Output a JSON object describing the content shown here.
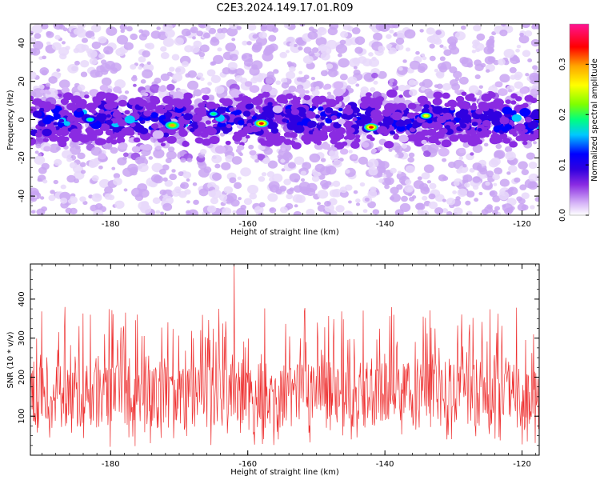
{
  "figure_title": "C2E3.2024.149.17.01.R09",
  "chart_data": [
    {
      "type": "heatmap",
      "xlabel": "Height of straight line (km)",
      "ylabel": "Frequency (Hz)",
      "xlim": [
        -191.7,
        -117.5
      ],
      "ylim": [
        -50,
        50
      ],
      "x_ticks": [
        -180,
        -160,
        -140,
        -120
      ],
      "y_ticks": [
        -40,
        -20,
        0,
        20,
        40
      ],
      "colorbar": {
        "label": "Normalized spectral amplitude",
        "range": [
          0,
          0.38
        ],
        "ticks": [
          0.0,
          0.1,
          0.2,
          0.3
        ],
        "colormap": [
          "#ffffff",
          "#d8b8f8",
          "#8a2be2",
          "#5a00d8",
          "#0000ff",
          "#00c8ff",
          "#00ff7f",
          "#7fff00",
          "#ffff00",
          "#ffa500",
          "#ff0000",
          "#ff1493"
        ]
      },
      "description_free_band_center_hz": 0,
      "band_halfwidth_hz": 10,
      "hotspots": [
        {
          "x": -171,
          "y": -3,
          "value": 0.32
        },
        {
          "x": -158,
          "y": -2,
          "value": 0.34
        },
        {
          "x": -142,
          "y": -4,
          "value": 0.35
        },
        {
          "x": -134,
          "y": 2,
          "value": 0.28
        },
        {
          "x": -183,
          "y": 0,
          "value": 0.22
        },
        {
          "x": -165,
          "y": 3,
          "value": 0.2
        }
      ]
    },
    {
      "type": "line",
      "xlabel": "Height of straight line (km)",
      "ylabel": "SNR (10 * v/v)",
      "xlim": [
        -191.7,
        -117.5
      ],
      "ylim": [
        0,
        490
      ],
      "x_ticks": [
        -180,
        -160,
        -140,
        -120
      ],
      "y_ticks": [
        100,
        200,
        300,
        400
      ],
      "color": "#ee3333",
      "typical_range": [
        70,
        240
      ],
      "max_value": 490,
      "max_at_x": -162
    }
  ]
}
